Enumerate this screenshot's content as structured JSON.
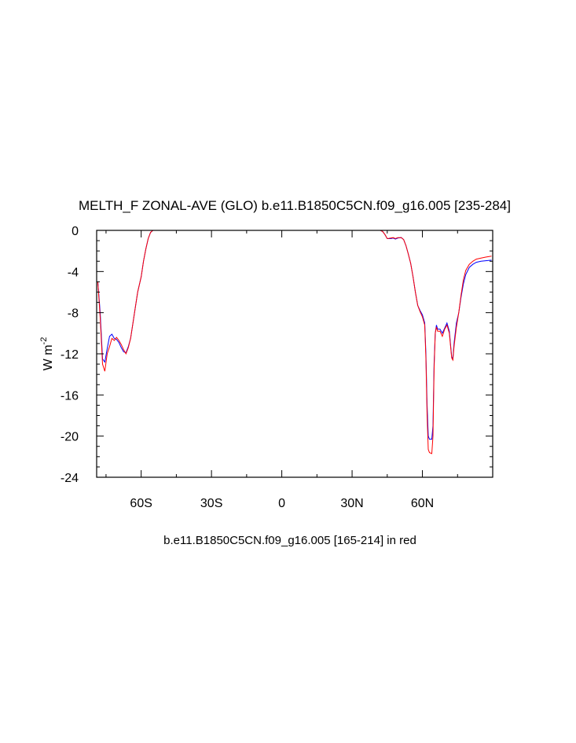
{
  "chart_data": {
    "type": "line",
    "title": "MELTH_F ZONAL-AVE (GLO) b.e11.B1850C5CN.f09_g16.005 [235-284]",
    "subtitle": "b.e11.B1850C5CN.f09_g16.005 [165-214] in red",
    "ylabel_main": "W m",
    "ylabel_sup": "-2",
    "xlim": [
      -79,
      90
    ],
    "ylim": [
      -24,
      0
    ],
    "grid": false,
    "x_ticks": [
      {
        "value": -60,
        "label": "60S"
      },
      {
        "value": -30,
        "label": "30S"
      },
      {
        "value": 0,
        "label": "0"
      },
      {
        "value": 30,
        "label": "30N"
      },
      {
        "value": 60,
        "label": "60N"
      }
    ],
    "y_ticks": [
      {
        "value": 0,
        "label": "0"
      },
      {
        "value": -4,
        "label": "-4"
      },
      {
        "value": -8,
        "label": "-8"
      },
      {
        "value": -12,
        "label": "-12"
      },
      {
        "value": -16,
        "label": "-16"
      },
      {
        "value": -20,
        "label": "-20"
      },
      {
        "value": -24,
        "label": "-24"
      }
    ],
    "series": [
      {
        "color": "#0000ff",
        "points": [
          [
            -78.5,
            -5.0
          ],
          [
            -77.5,
            -8.0
          ],
          [
            -76.5,
            -12.5
          ],
          [
            -75.5,
            -12.8
          ],
          [
            -74.5,
            -11.5
          ],
          [
            -73.5,
            -10.3
          ],
          [
            -72.5,
            -10.1
          ],
          [
            -71.5,
            -10.5
          ],
          [
            -70.5,
            -10.6
          ],
          [
            -69.5,
            -10.9
          ],
          [
            -68.5,
            -11.4
          ],
          [
            -67.5,
            -11.8
          ],
          [
            -66.5,
            -11.9
          ],
          [
            -65.5,
            -11.3
          ],
          [
            -64.5,
            -10.5
          ],
          [
            -63.5,
            -9.0
          ],
          [
            -62.5,
            -7.5
          ],
          [
            -61.5,
            -6.0
          ],
          [
            -60.0,
            -4.5
          ],
          [
            -59.0,
            -3.0
          ],
          [
            -58.0,
            -1.8
          ],
          [
            -57.0,
            -0.8
          ],
          [
            -56.0,
            -0.2
          ],
          [
            -55.0,
            0.0
          ],
          [
            -53.0,
            0.0
          ],
          [
            -30.0,
            0.0
          ],
          [
            0.0,
            0.0
          ],
          [
            30.0,
            0.0
          ],
          [
            42.0,
            0.0
          ],
          [
            43.0,
            -0.1
          ],
          [
            44.0,
            -0.4
          ],
          [
            45.0,
            -0.8
          ],
          [
            46.5,
            -0.8
          ],
          [
            47.5,
            -0.75
          ],
          [
            48.5,
            -0.85
          ],
          [
            49.5,
            -0.75
          ],
          [
            51.0,
            -0.7
          ],
          [
            52.0,
            -0.9
          ],
          [
            53.0,
            -1.5
          ],
          [
            54.0,
            -2.3
          ],
          [
            55.0,
            -3.2
          ],
          [
            56.0,
            -4.5
          ],
          [
            57.0,
            -6.0
          ],
          [
            58.0,
            -7.3
          ],
          [
            59.0,
            -7.8
          ],
          [
            60.0,
            -8.2
          ],
          [
            61.0,
            -9.0
          ],
          [
            61.5,
            -12.0
          ],
          [
            62.0,
            -17.0
          ],
          [
            62.5,
            -20.0
          ],
          [
            63.0,
            -20.3
          ],
          [
            64.0,
            -20.3
          ],
          [
            64.5,
            -19.0
          ],
          [
            65.0,
            -13.0
          ],
          [
            65.5,
            -10.0
          ],
          [
            66.0,
            -9.2
          ],
          [
            66.5,
            -9.6
          ],
          [
            67.5,
            -9.6
          ],
          [
            68.5,
            -10.0
          ],
          [
            69.5,
            -9.5
          ],
          [
            70.5,
            -9.0
          ],
          [
            71.5,
            -9.8
          ],
          [
            72.5,
            -12.3
          ],
          [
            73.0,
            -12.5
          ],
          [
            73.5,
            -11.0
          ],
          [
            74.5,
            -9.0
          ],
          [
            75.5,
            -8.0
          ],
          [
            76.5,
            -6.5
          ],
          [
            77.5,
            -5.2
          ],
          [
            78.5,
            -4.3
          ],
          [
            80.0,
            -3.6
          ],
          [
            81.5,
            -3.3
          ],
          [
            83.0,
            -3.1
          ],
          [
            85.0,
            -3.0
          ],
          [
            87.0,
            -2.95
          ],
          [
            89.5,
            -2.9
          ]
        ]
      },
      {
        "color": "#ff0000",
        "points": [
          [
            -78.5,
            -5.0
          ],
          [
            -77.5,
            -8.5
          ],
          [
            -76.5,
            -13.0
          ],
          [
            -75.5,
            -13.7
          ],
          [
            -74.5,
            -12.0
          ],
          [
            -73.5,
            -11.3
          ],
          [
            -72.5,
            -10.5
          ],
          [
            -71.5,
            -10.7
          ],
          [
            -70.5,
            -10.4
          ],
          [
            -69.5,
            -10.7
          ],
          [
            -68.5,
            -11.1
          ],
          [
            -67.5,
            -11.6
          ],
          [
            -66.5,
            -12.0
          ],
          [
            -65.5,
            -11.4
          ],
          [
            -64.5,
            -10.5
          ],
          [
            -63.5,
            -9.0
          ],
          [
            -62.5,
            -7.5
          ],
          [
            -61.5,
            -6.0
          ],
          [
            -60.0,
            -4.5
          ],
          [
            -59.0,
            -3.0
          ],
          [
            -58.0,
            -1.8
          ],
          [
            -57.0,
            -0.8
          ],
          [
            -56.0,
            -0.2
          ],
          [
            -55.0,
            0.0
          ],
          [
            -53.0,
            0.0
          ],
          [
            -30.0,
            0.0
          ],
          [
            0.0,
            0.0
          ],
          [
            30.0,
            0.0
          ],
          [
            42.0,
            0.0
          ],
          [
            43.0,
            -0.1
          ],
          [
            44.0,
            -0.4
          ],
          [
            45.0,
            -0.8
          ],
          [
            46.5,
            -0.75
          ],
          [
            47.5,
            -0.7
          ],
          [
            48.5,
            -0.8
          ],
          [
            49.5,
            -0.7
          ],
          [
            51.0,
            -0.7
          ],
          [
            52.0,
            -0.9
          ],
          [
            53.0,
            -1.5
          ],
          [
            54.0,
            -2.3
          ],
          [
            55.0,
            -3.2
          ],
          [
            56.0,
            -4.5
          ],
          [
            57.0,
            -6.0
          ],
          [
            58.0,
            -7.3
          ],
          [
            59.0,
            -7.9
          ],
          [
            60.0,
            -8.4
          ],
          [
            61.0,
            -9.2
          ],
          [
            61.5,
            -12.5
          ],
          [
            62.0,
            -18.0
          ],
          [
            62.5,
            -21.3
          ],
          [
            63.0,
            -21.6
          ],
          [
            64.0,
            -21.7
          ],
          [
            64.5,
            -20.0
          ],
          [
            65.0,
            -13.5
          ],
          [
            65.5,
            -10.0
          ],
          [
            66.0,
            -9.4
          ],
          [
            66.5,
            -9.8
          ],
          [
            67.5,
            -9.8
          ],
          [
            68.5,
            -10.3
          ],
          [
            69.5,
            -9.6
          ],
          [
            70.5,
            -9.2
          ],
          [
            71.5,
            -10.0
          ],
          [
            72.5,
            -12.4
          ],
          [
            73.0,
            -12.6
          ],
          [
            73.5,
            -11.3
          ],
          [
            74.5,
            -9.4
          ],
          [
            75.5,
            -8.0
          ],
          [
            76.5,
            -6.3
          ],
          [
            77.5,
            -4.8
          ],
          [
            78.5,
            -3.9
          ],
          [
            80.0,
            -3.3
          ],
          [
            81.5,
            -3.0
          ],
          [
            83.0,
            -2.8
          ],
          [
            85.0,
            -2.7
          ],
          [
            87.0,
            -2.6
          ],
          [
            89.5,
            -2.5
          ]
        ]
      }
    ]
  }
}
